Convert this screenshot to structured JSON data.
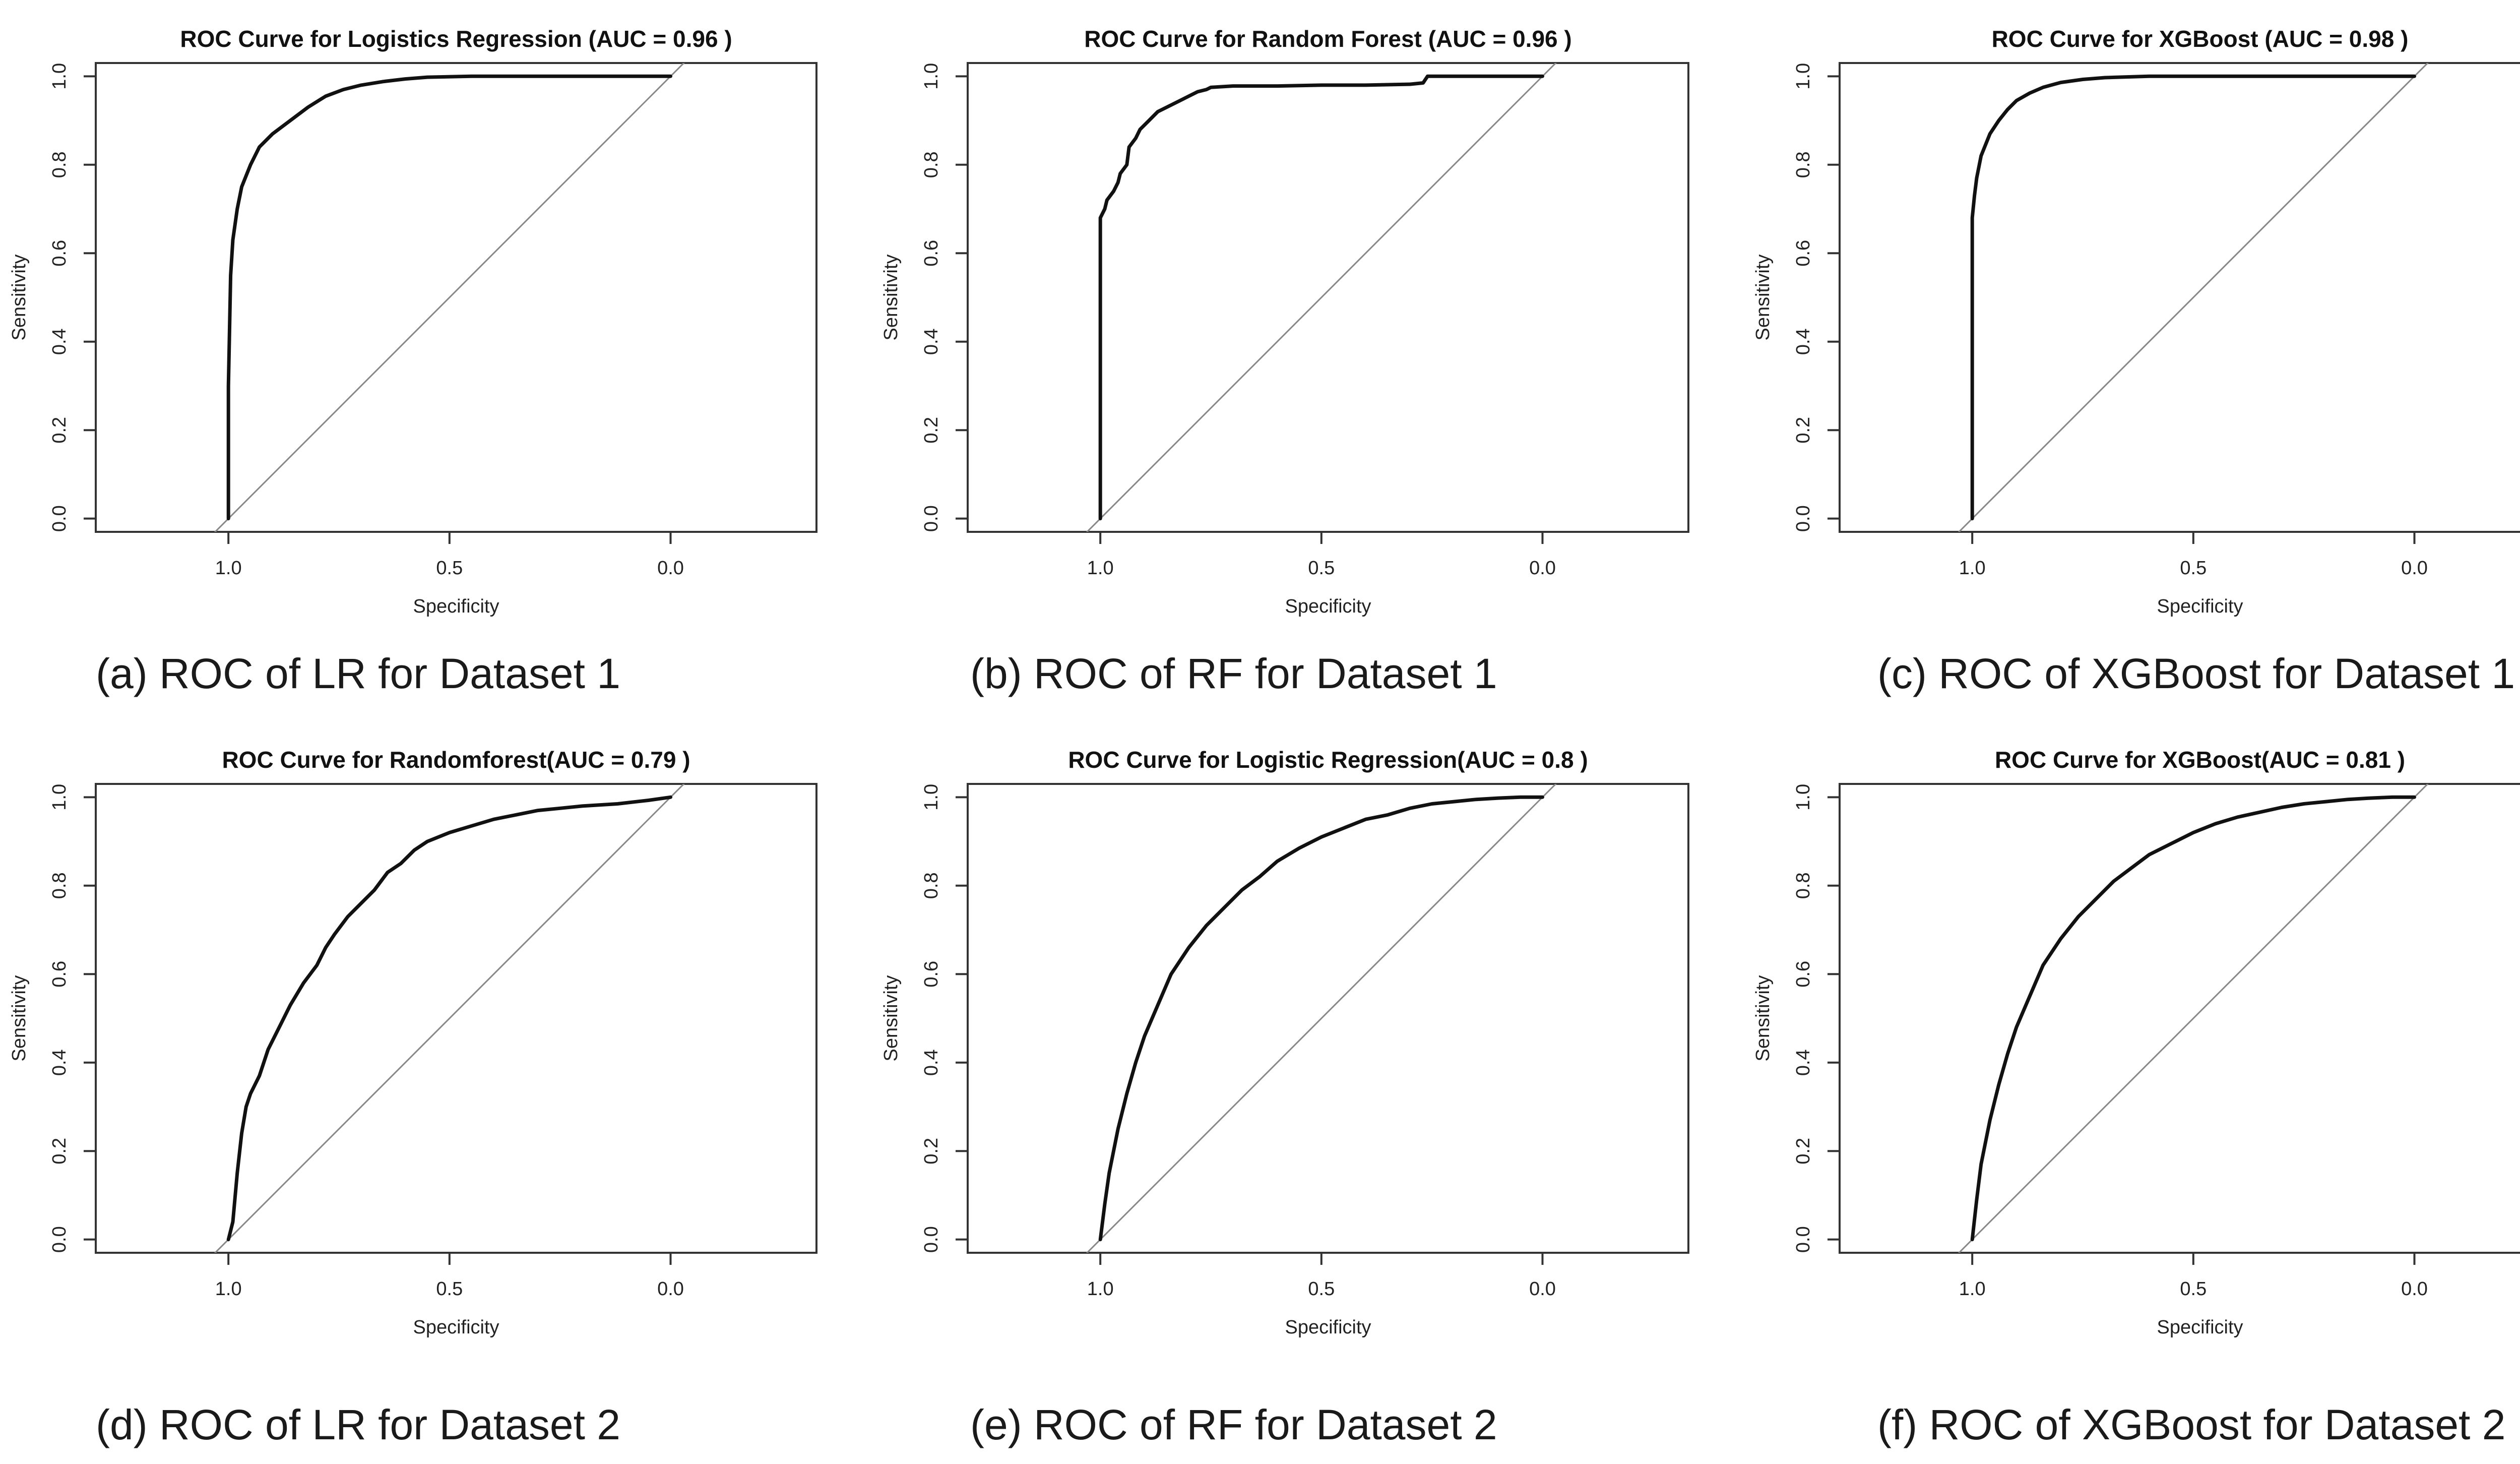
{
  "figure": {
    "background": "#ffffff",
    "line_color": "#111111",
    "reference_line_color": "#888888"
  },
  "chart_data": [
    {
      "type": "line",
      "panel": "a",
      "title": "ROC Curve for Logistics Regression (AUC = 0.96 )",
      "caption": "(a) ROC of LR for Dataset 1",
      "xlabel": "Specificity",
      "ylabel": "Sensitivity",
      "x_reversed": true,
      "xlim": [
        1.3,
        -0.33
      ],
      "ylim": [
        -0.03,
        1.03
      ],
      "xticks": [
        1.0,
        0.5,
        0.0
      ],
      "xtick_labels": [
        "1.0",
        "0.5",
        "0.0"
      ],
      "yticks": [
        0.0,
        0.2,
        0.4,
        0.6,
        0.8,
        1.0
      ],
      "ytick_labels": [
        "0.0",
        "0.2",
        "0.4",
        "0.6",
        "0.8",
        "1.0"
      ],
      "reference_line": "diagonal",
      "series": [
        {
          "name": "ROC",
          "x": [
            1.0,
            1.0,
            0.995,
            0.99,
            0.98,
            0.97,
            0.95,
            0.93,
            0.9,
            0.86,
            0.82,
            0.78,
            0.74,
            0.7,
            0.65,
            0.6,
            0.55,
            0.45,
            0.35,
            0.2,
            0.0
          ],
          "y": [
            0.0,
            0.3,
            0.55,
            0.63,
            0.7,
            0.75,
            0.8,
            0.84,
            0.87,
            0.9,
            0.93,
            0.955,
            0.97,
            0.98,
            0.988,
            0.994,
            0.998,
            1.0,
            1.0,
            1.0,
            1.0
          ]
        }
      ]
    },
    {
      "type": "line",
      "panel": "b",
      "title": "ROC Curve for Random Forest (AUC = 0.96 )",
      "caption": "(b) ROC of RF for Dataset 1",
      "xlabel": "Specificity",
      "ylabel": "Sensitivity",
      "x_reversed": true,
      "xlim": [
        1.3,
        -0.33
      ],
      "ylim": [
        -0.03,
        1.03
      ],
      "xticks": [
        1.0,
        0.5,
        0.0
      ],
      "xtick_labels": [
        "1.0",
        "0.5",
        "0.0"
      ],
      "yticks": [
        0.0,
        0.2,
        0.4,
        0.6,
        0.8,
        1.0
      ],
      "ytick_labels": [
        "0.0",
        "0.2",
        "0.4",
        "0.6",
        "0.8",
        "1.0"
      ],
      "reference_line": "diagonal",
      "series": [
        {
          "name": "ROC",
          "x": [
            1.0,
            1.0,
            0.99,
            0.985,
            0.97,
            0.96,
            0.955,
            0.94,
            0.935,
            0.92,
            0.91,
            0.89,
            0.87,
            0.85,
            0.82,
            0.8,
            0.78,
            0.76,
            0.75,
            0.7,
            0.6,
            0.5,
            0.4,
            0.3,
            0.27,
            0.26,
            0.2,
            0.1,
            0.0
          ],
          "y": [
            0.0,
            0.68,
            0.7,
            0.72,
            0.74,
            0.76,
            0.78,
            0.8,
            0.84,
            0.86,
            0.88,
            0.9,
            0.92,
            0.93,
            0.945,
            0.955,
            0.965,
            0.97,
            0.975,
            0.978,
            0.978,
            0.98,
            0.98,
            0.982,
            0.985,
            1.0,
            1.0,
            1.0,
            1.0
          ]
        }
      ]
    },
    {
      "type": "line",
      "panel": "c",
      "title": "ROC Curve for XGBoost (AUC = 0.98 )",
      "caption": "(c) ROC of XGBoost for Dataset 1",
      "xlabel": "Specificity",
      "ylabel": "Sensitivity",
      "x_reversed": true,
      "xlim": [
        1.3,
        -0.33
      ],
      "ylim": [
        -0.03,
        1.03
      ],
      "xticks": [
        1.0,
        0.5,
        0.0
      ],
      "xtick_labels": [
        "1.0",
        "0.5",
        "0.0"
      ],
      "yticks": [
        0.0,
        0.2,
        0.4,
        0.6,
        0.8,
        1.0
      ],
      "ytick_labels": [
        "0.0",
        "0.2",
        "0.4",
        "0.6",
        "0.8",
        "1.0"
      ],
      "reference_line": "diagonal",
      "series": [
        {
          "name": "ROC",
          "x": [
            1.0,
            1.0,
            0.995,
            0.99,
            0.98,
            0.96,
            0.94,
            0.92,
            0.9,
            0.87,
            0.84,
            0.8,
            0.75,
            0.7,
            0.6,
            0.5,
            0.3,
            0.0
          ],
          "y": [
            0.0,
            0.68,
            0.73,
            0.77,
            0.82,
            0.87,
            0.9,
            0.925,
            0.945,
            0.962,
            0.975,
            0.986,
            0.993,
            0.997,
            1.0,
            1.0,
            1.0,
            1.0
          ]
        }
      ]
    },
    {
      "type": "line",
      "panel": "d",
      "title": "ROC Curve for Randomforest(AUC = 0.79 )",
      "caption": "(d) ROC of LR for Dataset 2",
      "xlabel": "Specificity",
      "ylabel": "Sensitivity",
      "x_reversed": true,
      "xlim": [
        1.3,
        -0.33
      ],
      "ylim": [
        -0.03,
        1.03
      ],
      "xticks": [
        1.0,
        0.5,
        0.0
      ],
      "xtick_labels": [
        "1.0",
        "0.5",
        "0.0"
      ],
      "yticks": [
        0.0,
        0.2,
        0.4,
        0.6,
        0.8,
        1.0
      ],
      "ytick_labels": [
        "0.0",
        "0.2",
        "0.4",
        "0.6",
        "0.8",
        "1.0"
      ],
      "reference_line": "diagonal",
      "series": [
        {
          "name": "ROC",
          "x": [
            1.0,
            0.99,
            0.98,
            0.97,
            0.96,
            0.95,
            0.93,
            0.91,
            0.9,
            0.88,
            0.86,
            0.83,
            0.8,
            0.78,
            0.76,
            0.73,
            0.7,
            0.67,
            0.64,
            0.61,
            0.58,
            0.55,
            0.5,
            0.45,
            0.4,
            0.35,
            0.3,
            0.25,
            0.2,
            0.12,
            0.05,
            0.0
          ],
          "y": [
            0.0,
            0.04,
            0.15,
            0.24,
            0.3,
            0.33,
            0.37,
            0.43,
            0.45,
            0.49,
            0.53,
            0.58,
            0.62,
            0.66,
            0.69,
            0.73,
            0.76,
            0.79,
            0.83,
            0.85,
            0.88,
            0.9,
            0.92,
            0.935,
            0.95,
            0.96,
            0.97,
            0.975,
            0.98,
            0.985,
            0.993,
            1.0
          ]
        }
      ]
    },
    {
      "type": "line",
      "panel": "e",
      "title": "ROC Curve for Logistic Regression(AUC = 0.8 )",
      "caption": "(e) ROC of RF for Dataset 2",
      "xlabel": "Specificity",
      "ylabel": "Sensitivity",
      "x_reversed": true,
      "xlim": [
        1.3,
        -0.33
      ],
      "ylim": [
        -0.03,
        1.03
      ],
      "xticks": [
        1.0,
        0.5,
        0.0
      ],
      "xtick_labels": [
        "1.0",
        "0.5",
        "0.0"
      ],
      "yticks": [
        0.0,
        0.2,
        0.4,
        0.6,
        0.8,
        1.0
      ],
      "ytick_labels": [
        "0.0",
        "0.2",
        "0.4",
        "0.6",
        "0.8",
        "1.0"
      ],
      "reference_line": "diagonal",
      "series": [
        {
          "name": "ROC",
          "x": [
            1.0,
            0.99,
            0.98,
            0.96,
            0.94,
            0.92,
            0.9,
            0.87,
            0.84,
            0.8,
            0.76,
            0.72,
            0.68,
            0.64,
            0.6,
            0.55,
            0.5,
            0.45,
            0.4,
            0.35,
            0.3,
            0.25,
            0.2,
            0.15,
            0.1,
            0.05,
            0.0
          ],
          "y": [
            0.0,
            0.08,
            0.15,
            0.25,
            0.33,
            0.4,
            0.46,
            0.53,
            0.6,
            0.66,
            0.71,
            0.75,
            0.79,
            0.82,
            0.855,
            0.885,
            0.91,
            0.93,
            0.95,
            0.96,
            0.975,
            0.985,
            0.99,
            0.995,
            0.998,
            1.0,
            1.0
          ]
        }
      ]
    },
    {
      "type": "line",
      "panel": "f",
      "title": "ROC Curve for XGBoost(AUC = 0.81 )",
      "caption": "(f) ROC of XGBoost for Dataset 2",
      "xlabel": "Specificity",
      "ylabel": "Sensitivity",
      "x_reversed": true,
      "xlim": [
        1.3,
        -0.33
      ],
      "ylim": [
        -0.03,
        1.03
      ],
      "xticks": [
        1.0,
        0.5,
        0.0
      ],
      "xtick_labels": [
        "1.0",
        "0.5",
        "0.0"
      ],
      "yticks": [
        0.0,
        0.2,
        0.4,
        0.6,
        0.8,
        1.0
      ],
      "ytick_labels": [
        "0.0",
        "0.2",
        "0.4",
        "0.6",
        "0.8",
        "1.0"
      ],
      "reference_line": "diagonal",
      "series": [
        {
          "name": "ROC",
          "x": [
            1.0,
            0.99,
            0.98,
            0.96,
            0.94,
            0.92,
            0.9,
            0.87,
            0.84,
            0.8,
            0.76,
            0.72,
            0.68,
            0.64,
            0.6,
            0.55,
            0.5,
            0.45,
            0.4,
            0.35,
            0.3,
            0.25,
            0.2,
            0.15,
            0.1,
            0.05,
            0.0
          ],
          "y": [
            0.0,
            0.09,
            0.17,
            0.27,
            0.35,
            0.42,
            0.48,
            0.55,
            0.62,
            0.68,
            0.73,
            0.77,
            0.81,
            0.84,
            0.87,
            0.895,
            0.92,
            0.94,
            0.955,
            0.966,
            0.977,
            0.985,
            0.99,
            0.995,
            0.998,
            1.0,
            1.0
          ]
        }
      ]
    }
  ]
}
